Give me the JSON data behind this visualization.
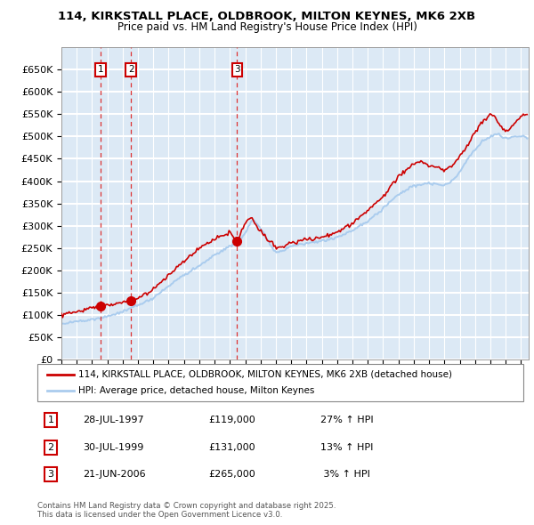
{
  "title": "114, KIRKSTALL PLACE, OLDBROOK, MILTON KEYNES, MK6 2XB",
  "subtitle": "Price paid vs. HM Land Registry's House Price Index (HPI)",
  "legend_label_red": "114, KIRKSTALL PLACE, OLDBROOK, MILTON KEYNES, MK6 2XB (detached house)",
  "legend_label_blue": "HPI: Average price, detached house, Milton Keynes",
  "transactions": [
    {
      "num": 1,
      "date": "28-JUL-1997",
      "price": 119000,
      "hpi_pct": "27% ↑ HPI",
      "year": 1997.55
    },
    {
      "num": 2,
      "date": "30-JUL-1999",
      "price": 131000,
      "hpi_pct": "13% ↑ HPI",
      "year": 1999.55
    },
    {
      "num": 3,
      "date": "21-JUN-2006",
      "price": 265000,
      "hpi_pct": " 3% ↑ HPI",
      "year": 2006.47
    }
  ],
  "footer": "Contains HM Land Registry data © Crown copyright and database right 2025.\nThis data is licensed under the Open Government Licence v3.0.",
  "ylim": [
    0,
    700000
  ],
  "yticks": [
    0,
    50000,
    100000,
    150000,
    200000,
    250000,
    300000,
    350000,
    400000,
    450000,
    500000,
    550000,
    600000,
    650000
  ],
  "xlim_start": 1995,
  "xlim_end": 2025.5,
  "background_color": "#dce9f5",
  "grid_color": "#ffffff",
  "red_color": "#cc0000",
  "blue_color": "#aaccee",
  "vline_color": "#dd3333"
}
